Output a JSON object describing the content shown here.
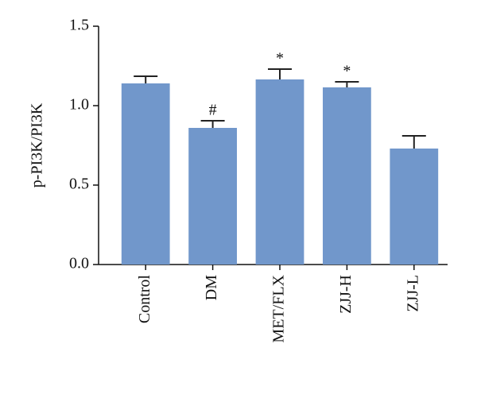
{
  "chart_data": {
    "type": "bar",
    "y_label": "p-PI3K/PI3K",
    "categories": [
      "Control",
      "DM",
      "MET/FLX",
      "ZJJ-H",
      "ZJJ-L"
    ],
    "values": [
      1.14,
      0.86,
      1.165,
      1.115,
      0.73
    ],
    "errors": [
      0.045,
      0.045,
      0.065,
      0.035,
      0.08
    ],
    "annotations": [
      null,
      "#",
      "*",
      "*",
      null
    ],
    "color": "#7197cb",
    "ylim": [
      0,
      1.5
    ],
    "yticks": [
      {
        "value": 0,
        "label": "0.0"
      },
      {
        "value": 0.5,
        "label": "0.5"
      },
      {
        "value": 1,
        "label": "1.0"
      },
      {
        "value": 1.5,
        "label": "1.5"
      }
    ]
  }
}
